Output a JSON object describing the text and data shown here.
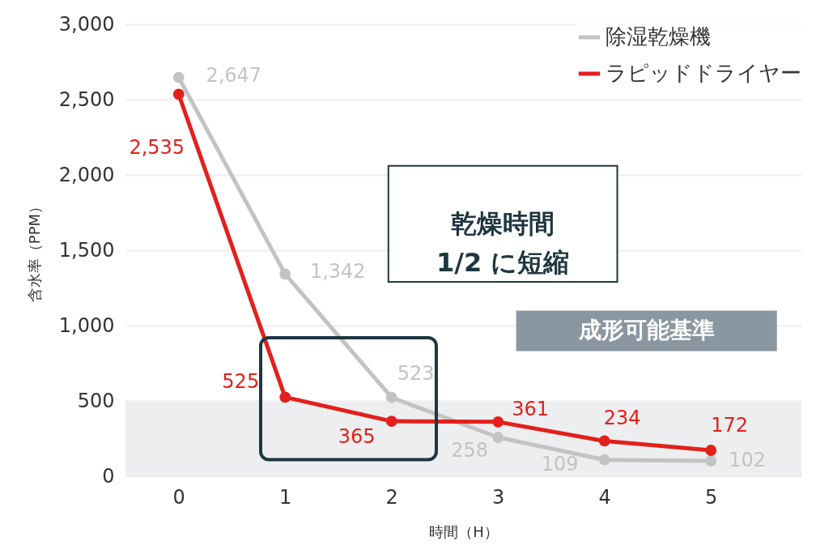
{
  "chart_data": {
    "type": "line",
    "xlabel": "時間（H）",
    "ylabel": "含水率（PPM）",
    "x": [
      0,
      1,
      2,
      3,
      4,
      5
    ],
    "xlim": [
      -0.5,
      5.85
    ],
    "xticks": [
      0,
      1,
      2,
      3,
      4,
      5
    ],
    "ylim": [
      0,
      3000
    ],
    "yticks": [
      0,
      500,
      {
        "value": 1000,
        "label": "1,000"
      },
      {
        "value": 1500,
        "label": "1,500"
      },
      {
        "value": 2000,
        "label": "2,000"
      },
      {
        "value": 2500,
        "label": "2,500"
      },
      {
        "value": 3000,
        "label": "3,000"
      }
    ],
    "series": [
      {
        "name": "除湿乾燥機",
        "color": "#c3c3c3",
        "values": [
          2647,
          1342,
          523,
          258,
          109,
          102
        ],
        "value_labels": [
          "2,647",
          "1,342",
          "523",
          "258",
          "109",
          "102"
        ]
      },
      {
        "name": "ラピッドドライヤー",
        "color": "#e3201b",
        "values": [
          2535,
          525,
          365,
          361,
          234,
          172
        ],
        "value_labels": [
          "2,535",
          "525",
          "365",
          "361",
          "234",
          "172"
        ]
      }
    ],
    "bands": [
      {
        "axis": "y",
        "from": 0,
        "to": 500,
        "label": "成形可能基準",
        "color": "#eceeef"
      }
    ],
    "annotations": [
      "乾燥時間\n1/2 に短縮"
    ],
    "grid": "y",
    "legend": "top right",
    "marker": "circle"
  }
}
